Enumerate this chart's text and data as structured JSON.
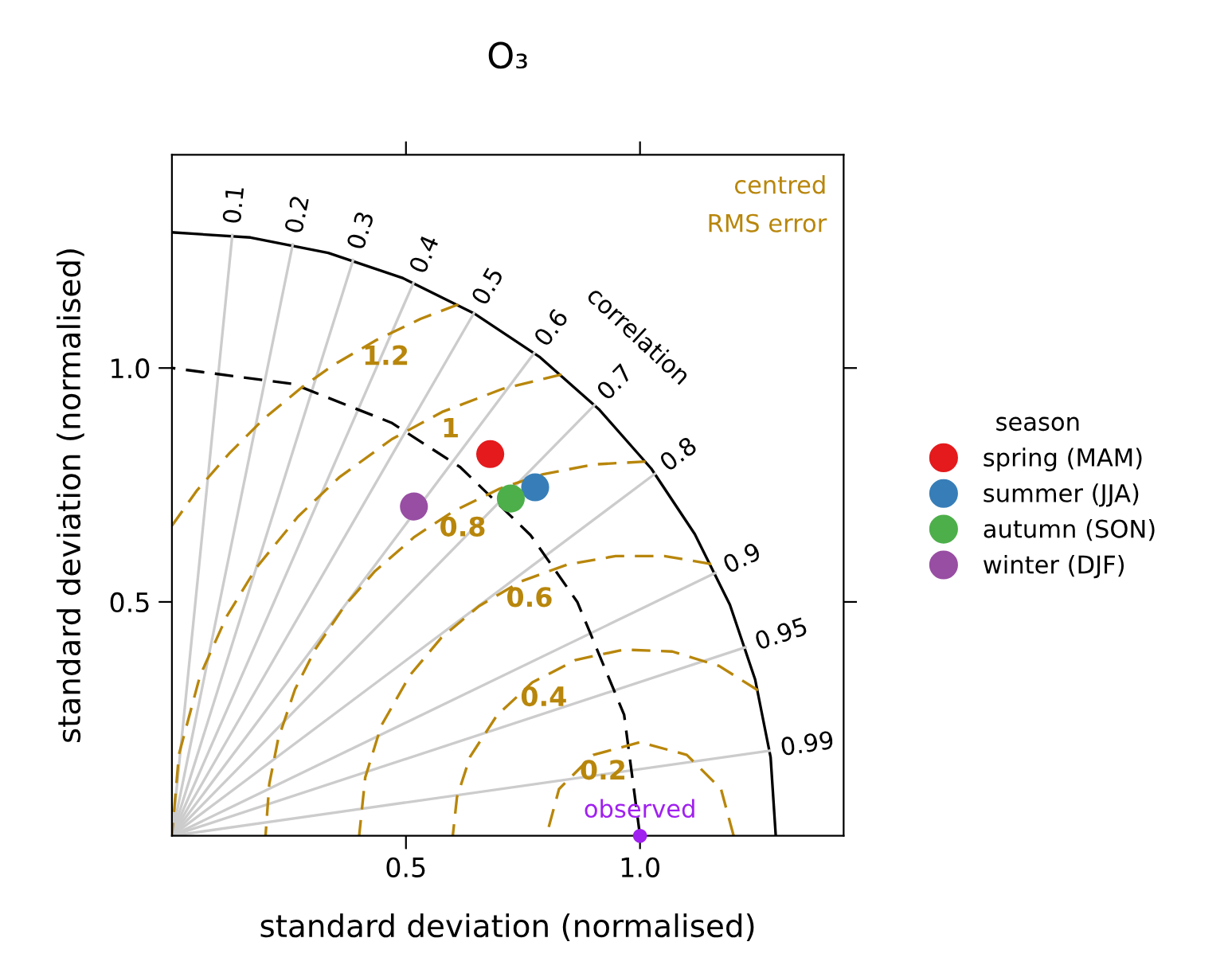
{
  "chart_data": {
    "type": "scatter",
    "title": "O₃",
    "xlabel": "standard deviation (normalised)",
    "ylabel": "standard deviation (normalised)",
    "legend_title": "season",
    "legend": "right",
    "marker": "circle",
    "xlim": [
      0,
      1.435
    ],
    "ylim": [
      0,
      1.456
    ],
    "xticks": [
      0.5,
      {
        "value": 1,
        "label": "1.0"
      }
    ],
    "yticks": [
      0.5,
      {
        "value": 1,
        "label": "1.0"
      }
    ],
    "series": [
      {
        "type": "line",
        "marker": "none",
        "line_style": "solid",
        "color": "#000000",
        "x": [
          1.29,
          1.279,
          1.246,
          1.192,
          1.117,
          1.024,
          0.912,
          0.785,
          0.645,
          0.494,
          0.334,
          0.168,
          0
        ],
        "values": [
          0,
          0.168,
          0.334,
          0.494,
          0.645,
          0.785,
          0.912,
          1.024,
          1.117,
          1.192,
          1.246,
          1.279,
          1.29
        ]
      },
      {
        "type": "line",
        "marker": "none",
        "line_style": "solid",
        "color": "#cccccc",
        "x": [
          0,
          0.129
        ],
        "values": [
          0,
          1.284
        ]
      },
      {
        "type": "line",
        "marker": "none",
        "line_style": "solid",
        "color": "#cccccc",
        "x": [
          0,
          0.258
        ],
        "values": [
          0,
          1.264
        ]
      },
      {
        "type": "line",
        "marker": "none",
        "line_style": "solid",
        "color": "#cccccc",
        "x": [
          0,
          0.387
        ],
        "values": [
          0,
          1.231
        ]
      },
      {
        "type": "line",
        "marker": "none",
        "line_style": "solid",
        "color": "#cccccc",
        "x": [
          0,
          0.516
        ],
        "values": [
          0,
          1.182
        ]
      },
      {
        "type": "line",
        "marker": "none",
        "line_style": "solid",
        "color": "#cccccc",
        "x": [
          0,
          0.645
        ],
        "values": [
          0,
          1.117
        ]
      },
      {
        "type": "line",
        "marker": "none",
        "line_style": "solid",
        "color": "#cccccc",
        "x": [
          0,
          0.774
        ],
        "values": [
          0,
          1.032
        ]
      },
      {
        "type": "line",
        "marker": "none",
        "line_style": "solid",
        "color": "#cccccc",
        "x": [
          0,
          0.903
        ],
        "values": [
          0,
          0.921
        ]
      },
      {
        "type": "line",
        "marker": "none",
        "line_style": "solid",
        "color": "#cccccc",
        "x": [
          0,
          1.032
        ],
        "values": [
          0,
          0.774
        ]
      },
      {
        "type": "line",
        "marker": "none",
        "line_style": "solid",
        "color": "#cccccc",
        "x": [
          0,
          1.161
        ],
        "values": [
          0,
          0.562
        ]
      },
      {
        "type": "line",
        "marker": "none",
        "line_style": "solid",
        "color": "#cccccc",
        "x": [
          0,
          1.2255
        ],
        "values": [
          0,
          0.403
        ]
      },
      {
        "type": "line",
        "marker": "none",
        "line_style": "solid",
        "color": "#cccccc",
        "x": [
          0,
          1.277
        ],
        "values": [
          0,
          0.182
        ]
      },
      {
        "type": "line",
        "marker": "none",
        "line_style": "dashed",
        "color": "#000000",
        "x": [
          1,
          0.966,
          0.866,
          0.766,
          0.616,
          0.469,
          0.259,
          0
        ],
        "values": [
          0,
          0.259,
          0.5,
          0.643,
          0.788,
          0.883,
          0.966,
          1
        ]
      },
      {
        "type": "line",
        "marker": "none",
        "line_style": "dashed",
        "color": "#b8860b",
        "x": [
          1.2,
          1.173,
          1.1,
          1,
          0.9,
          0.827,
          0.8
        ],
        "values": [
          0,
          0.1,
          0.173,
          0.2,
          0.173,
          0.1,
          0
        ]
      },
      {
        "type": "line",
        "marker": "none",
        "line_style": "dashed",
        "color": "#b8860b",
        "x": [
          1.252,
          1.169,
          1.069,
          0.965,
          0.863,
          0.77,
          0.694,
          0.637,
          0.609,
          0.6
        ],
        "values": [
          0.311,
          0.363,
          0.394,
          0.398,
          0.376,
          0.328,
          0.257,
          0.169,
          0.083,
          0
        ]
      },
      {
        "type": "line",
        "marker": "none",
        "line_style": "dashed",
        "color": "#b8860b",
        "x": [
          1.152,
          1.052,
          0.948,
          0.845,
          0.746,
          0.656,
          0.576,
          0.509,
          0.447,
          0.413,
          0.4
        ],
        "values": [
          0.581,
          0.598,
          0.598,
          0.58,
          0.544,
          0.491,
          0.424,
          0.344,
          0.235,
          0.125,
          0
        ]
      },
      {
        "type": "line",
        "marker": "none",
        "line_style": "dashed",
        "color": "#b8860b",
        "x": [
          1.012,
          0.902,
          0.793,
          0.7,
          0.6,
          0.518,
          0.434,
          0.37,
          0.307,
          0.263,
          0.227,
          0.208,
          0.2
        ],
        "values": [
          0.8,
          0.794,
          0.773,
          0.742,
          0.693,
          0.639,
          0.566,
          0.493,
          0.4,
          0.313,
          0.207,
          0.111,
          0
        ]
      },
      {
        "type": "line",
        "marker": "none",
        "line_style": "dashed",
        "color": "#b8860b",
        "x": [
          0.832,
          0.708,
          0.577,
          0.47,
          0.357,
          0.269,
          0.181,
          0.117,
          0.06,
          0.015,
          0
        ],
        "values": [
          0.986,
          0.956,
          0.906,
          0.848,
          0.766,
          0.682,
          0.574,
          0.469,
          0.342,
          0.174,
          0
        ]
      },
      {
        "type": "line",
        "marker": "none",
        "line_style": "dashed",
        "color": "#b8860b",
        "x": [
          0.612,
          0.531,
          0.437,
          0.346,
          0.278,
          0.197,
          0.123,
          0.054,
          0
        ],
        "values": [
          1.136,
          1.105,
          1.06,
          1.007,
          0.959,
          0.892,
          0.818,
          0.739,
          0.663
        ]
      },
      {
        "name": "spring (MAM)",
        "color": "#e41a1c",
        "x": [
          0.68
        ],
        "values": [
          0.816
        ]
      },
      {
        "name": "summer (JJA)",
        "color": "#377eb8",
        "x": [
          0.776
        ],
        "values": [
          0.745
        ]
      },
      {
        "name": "autumn (SON)",
        "color": "#4daf4a",
        "x": [
          0.724
        ],
        "values": [
          0.721
        ]
      },
      {
        "name": "winter (DJF)",
        "color": "#984ea3",
        "x": [
          0.517
        ],
        "values": [
          0.704
        ]
      },
      {
        "color": "#a020f0",
        "x": [
          1
        ],
        "values": [
          0
        ]
      }
    ],
    "annotations": [
      "centred\nRMS error",
      "correlation",
      {
        "text": "observed",
        "x": 1,
        "y": 0
      },
      {
        "text": "0.1",
        "x": 0.129,
        "y": 1.284
      },
      {
        "text": "0.2",
        "x": 0.258,
        "y": 1.264
      },
      {
        "text": "0.3",
        "x": 0.387,
        "y": 1.231
      },
      {
        "text": "0.4",
        "x": 0.516,
        "y": 1.182
      },
      {
        "text": "0.5",
        "x": 0.645,
        "y": 1.117
      },
      {
        "text": "0.6",
        "x": 0.774,
        "y": 1.032
      },
      {
        "text": "0.7",
        "x": 0.903,
        "y": 0.921
      },
      {
        "text": "0.8",
        "x": 1.032,
        "y": 0.774
      },
      {
        "text": "0.9",
        "x": 1.161,
        "y": 0.562
      },
      {
        "text": "0.95",
        "x": 1.2255,
        "y": 0.403
      },
      {
        "text": "0.99",
        "x": 1.277,
        "y": 0.182
      },
      {
        "text": "0.2",
        "x": 0.9,
        "y": 0.173
      },
      {
        "text": "0.4",
        "x": 0.77,
        "y": 0.328
      },
      {
        "text": "0.6",
        "x": 0.746,
        "y": 0.544
      },
      {
        "text": "0.8",
        "x": 0.6,
        "y": 0.693
      },
      {
        "text": "1",
        "x": 0.577,
        "y": 0.906
      },
      {
        "text": "1.2",
        "x": 0.437,
        "y": 1.06
      }
    ]
  }
}
